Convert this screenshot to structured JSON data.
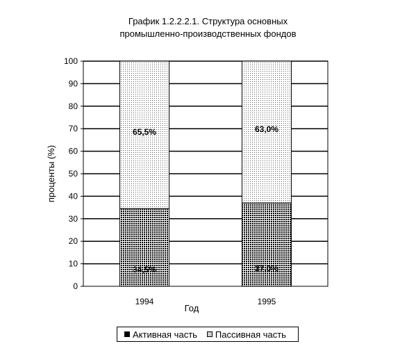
{
  "chart_data": {
    "type": "bar",
    "stacked": true,
    "title": "График 1.2.2.2.1.  Структура основных",
    "subtitle": "промышленно-производственных фондов",
    "xlabel": "Год",
    "ylabel": "проценты (%)",
    "categories": [
      "1994",
      "1995"
    ],
    "series": [
      {
        "name": "Активная часть",
        "values": [
          34.5,
          37.0
        ],
        "labels": [
          "34,5%",
          "37,0%"
        ],
        "pattern": "dense-dots"
      },
      {
        "name": "Пассивная часть",
        "values": [
          65.5,
          63.0
        ],
        "labels": [
          "65,5%",
          "63,0%"
        ],
        "pattern": "light-dots"
      }
    ],
    "ylim": [
      0,
      100
    ],
    "yticks": [
      "0",
      "10",
      "20",
      "30",
      "40",
      "50",
      "60",
      "70",
      "80",
      "90",
      "100"
    ],
    "grid": true,
    "legend_position": "bottom"
  }
}
